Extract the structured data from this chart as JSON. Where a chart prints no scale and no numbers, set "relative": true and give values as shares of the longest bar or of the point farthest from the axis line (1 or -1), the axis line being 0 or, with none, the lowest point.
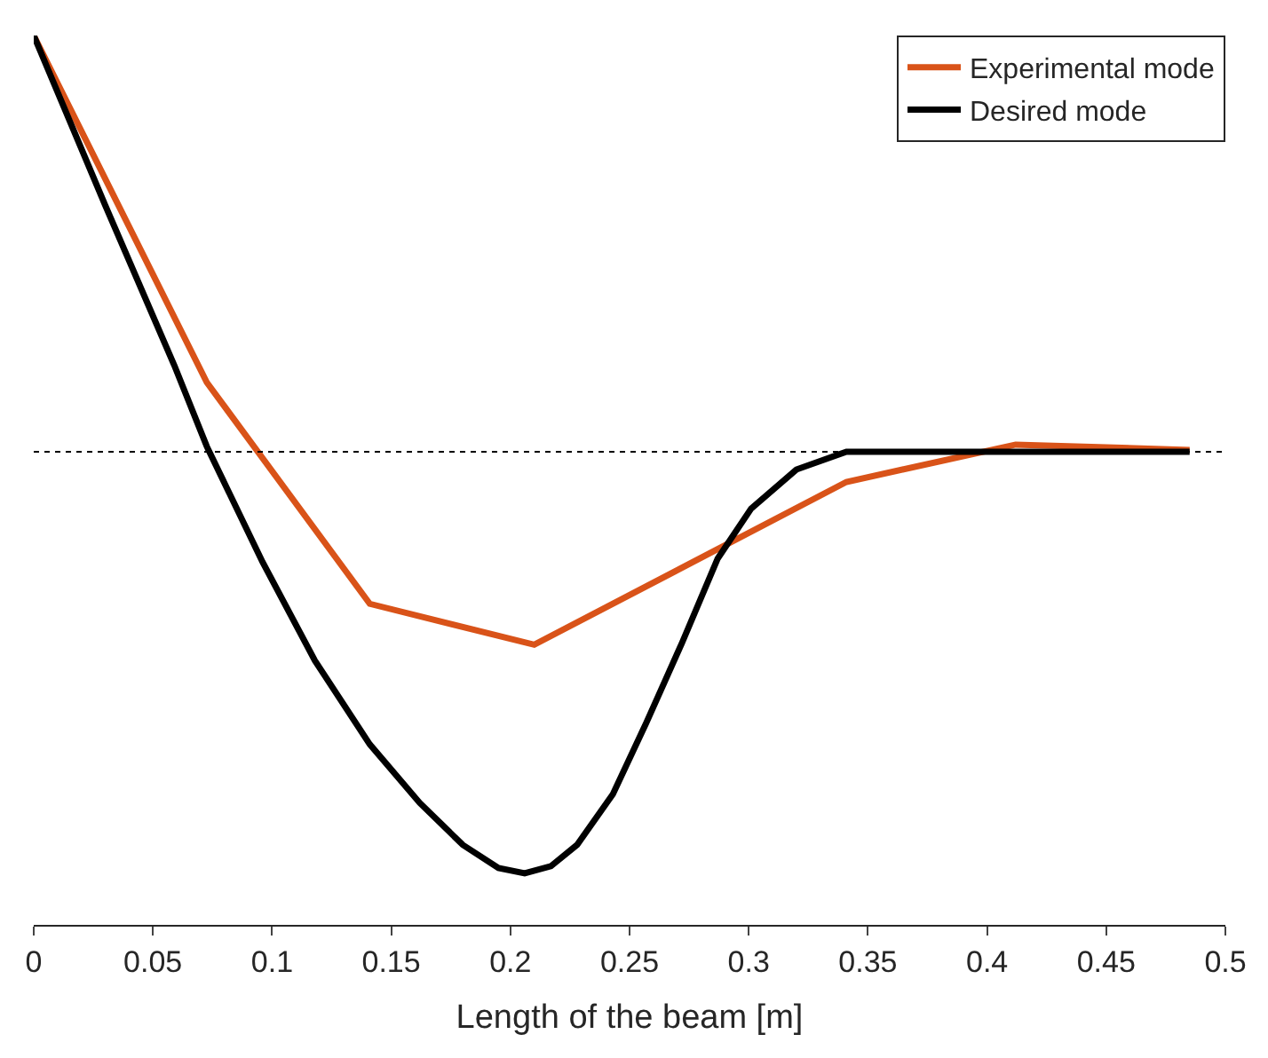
{
  "chart_data": {
    "type": "line",
    "relative": true,
    "xlabel": "Length of the beam [m]",
    "xlim": [
      0,
      0.5
    ],
    "xticks": [
      0,
      0.05,
      0.1,
      0.15,
      0.2,
      0.25,
      0.3,
      0.35,
      0.4,
      0.45,
      0.5
    ],
    "legend": "top right",
    "marker": "none",
    "line_style": "solid",
    "series": [
      {
        "name": "Experimental mode",
        "color": "#d95319",
        "x": [
          0,
          0.0726,
          0.141,
          0.21,
          0.341,
          0.412,
          0.485
        ],
        "values": [
          1.0,
          0.61,
          0.361,
          0.315,
          0.498,
          0.54,
          0.534
        ]
      },
      {
        "name": "Desired mode",
        "color": "#000000",
        "x": [
          0,
          0.03,
          0.059,
          0.0726,
          0.096,
          0.118,
          0.141,
          0.162,
          0.18,
          0.195,
          0.206,
          0.217,
          0.228,
          0.243,
          0.257,
          0.272,
          0.287,
          0.301,
          0.32,
          0.341,
          0.485
        ],
        "values": [
          1.0,
          0.809,
          0.629,
          0.538,
          0.408,
          0.297,
          0.203,
          0.137,
          0.09,
          0.064,
          0.058,
          0.066,
          0.09,
          0.147,
          0.227,
          0.317,
          0.412,
          0.468,
          0.512,
          0.532,
          0.532
        ]
      }
    ],
    "ref_lines": [
      {
        "axis": "y",
        "value": 0.532,
        "color": "#000000",
        "line_style": "dotted"
      }
    ]
  }
}
